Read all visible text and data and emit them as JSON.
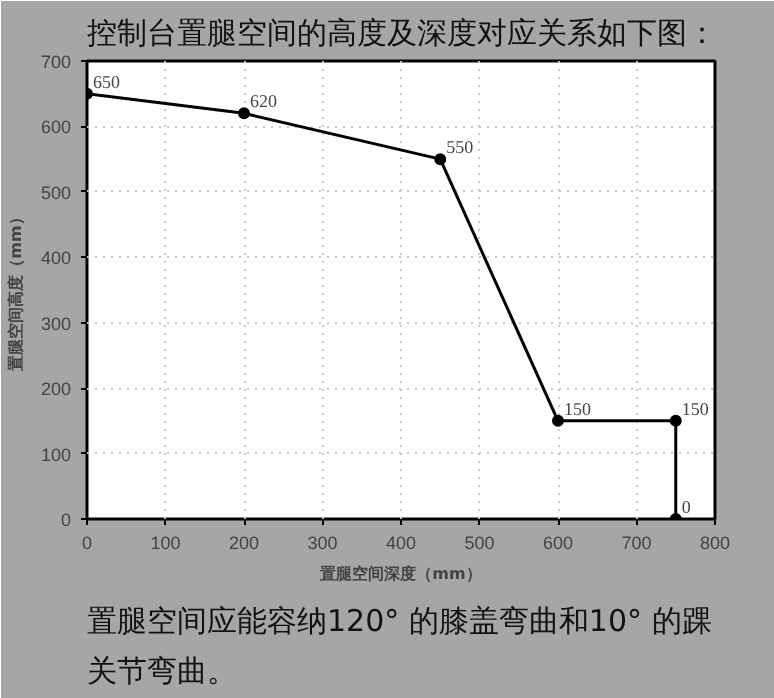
{
  "chart_data": {
    "type": "line",
    "title": "控制台置腿空间的高度及深度对应关系如下图：",
    "xlabel": "置腿空间深度（mm）",
    "ylabel": "置腿空间高度（mm）",
    "x": [
      0,
      200,
      450,
      600,
      750,
      750
    ],
    "series": [
      {
        "color": "#000000",
        "values": [
          650,
          620,
          550,
          150,
          150,
          0
        ]
      }
    ],
    "data_labels": true,
    "marker": "circle",
    "line_style": "solid",
    "grid": true,
    "xlim": [
      0,
      800
    ],
    "xticks": [
      0,
      100,
      200,
      300,
      400,
      500,
      600,
      700,
      800
    ],
    "ylim": [
      0,
      700
    ],
    "yticks": [
      0,
      100,
      200,
      300,
      400,
      500,
      600,
      700
    ],
    "annotations": [
      "置腿空间应能容纳120° 的膝盖弯曲和10° 的踝关节弯曲。"
    ]
  }
}
